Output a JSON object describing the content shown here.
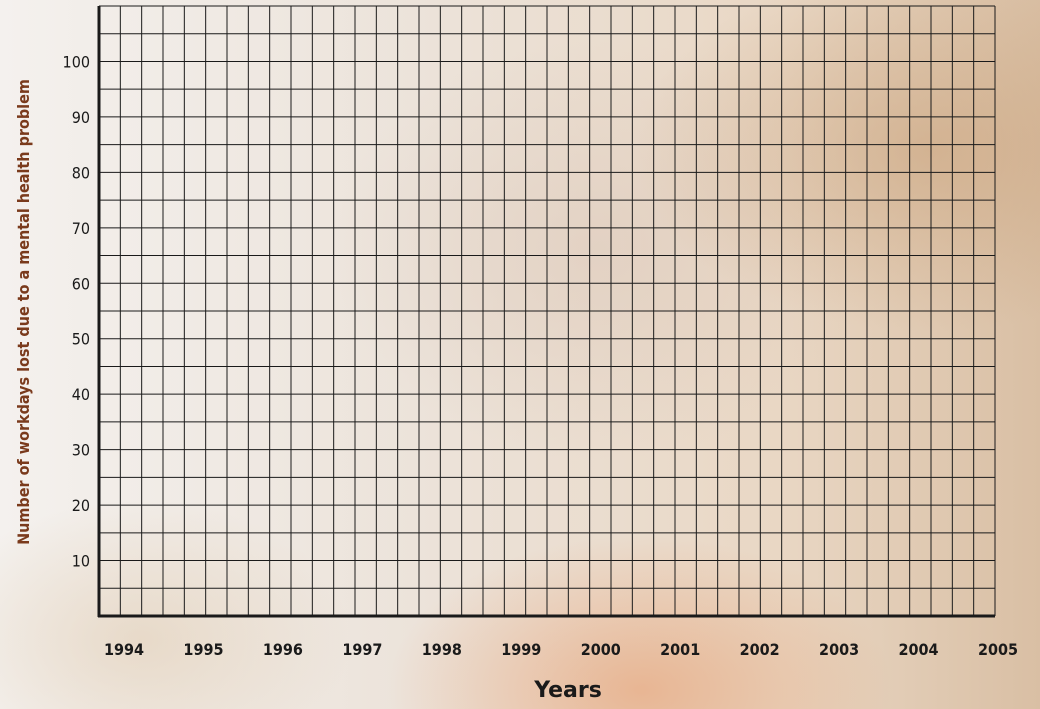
{
  "chart_data": {
    "type": "line",
    "title": "",
    "xlabel": "Years",
    "ylabel": "Number of workdays lost due to a mental health problem",
    "x": [
      "1994",
      "1995",
      "1996",
      "1997",
      "1998",
      "1999",
      "2000",
      "2001",
      "2002",
      "2003",
      "2004",
      "2005"
    ],
    "y_ticks": [
      10,
      20,
      30,
      40,
      50,
      60,
      70,
      80,
      90,
      100
    ],
    "ylim": [
      0,
      110
    ],
    "grid": true,
    "series": [],
    "colors": {
      "ylabel": "#7a3a1c",
      "grid": "#1a1a1a",
      "text": "#1a1a1a"
    }
  }
}
